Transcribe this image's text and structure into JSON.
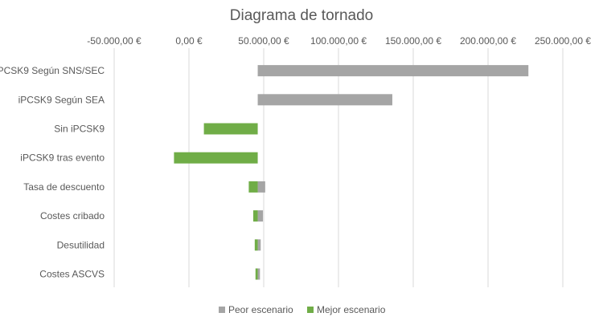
{
  "chart_data": {
    "type": "bar",
    "orientation": "horizontal",
    "title": "Diagrama de tornado",
    "xlim": [
      -50000,
      250000
    ],
    "x_ticks": [
      -50000,
      0,
      50000,
      100000,
      150000,
      200000,
      250000
    ],
    "x_tick_labels": [
      "-50.000,00 €",
      "0,00 €",
      "50.000,00 €",
      "100.000,00 €",
      "150.000,00 €",
      "200.000,00 €",
      "250.000,00 €"
    ],
    "x_axis_position": "top",
    "grid": true,
    "legend_position": "bottom",
    "colors": {
      "peor": "#a5a5a5",
      "mejor": "#70ad47"
    },
    "base_value": 46000,
    "categories": [
      "iPCSK9 Según SNS/SEC",
      "iPCSK9 Según SEA",
      "Sin iPCSK9",
      "iPCSK9 tras evento",
      "Tasa de descuento",
      "Costes cribado",
      "Desutilidad",
      "Costes ASCVS"
    ],
    "series": [
      {
        "name": "Peor escenario",
        "values": [
          227000,
          136000,
          46000,
          46000,
          51000,
          49500,
          48000,
          47500
        ]
      },
      {
        "name": "Mejor escenario",
        "values": [
          46000,
          46000,
          10000,
          -10000,
          40000,
          43000,
          44000,
          44500
        ]
      }
    ]
  }
}
